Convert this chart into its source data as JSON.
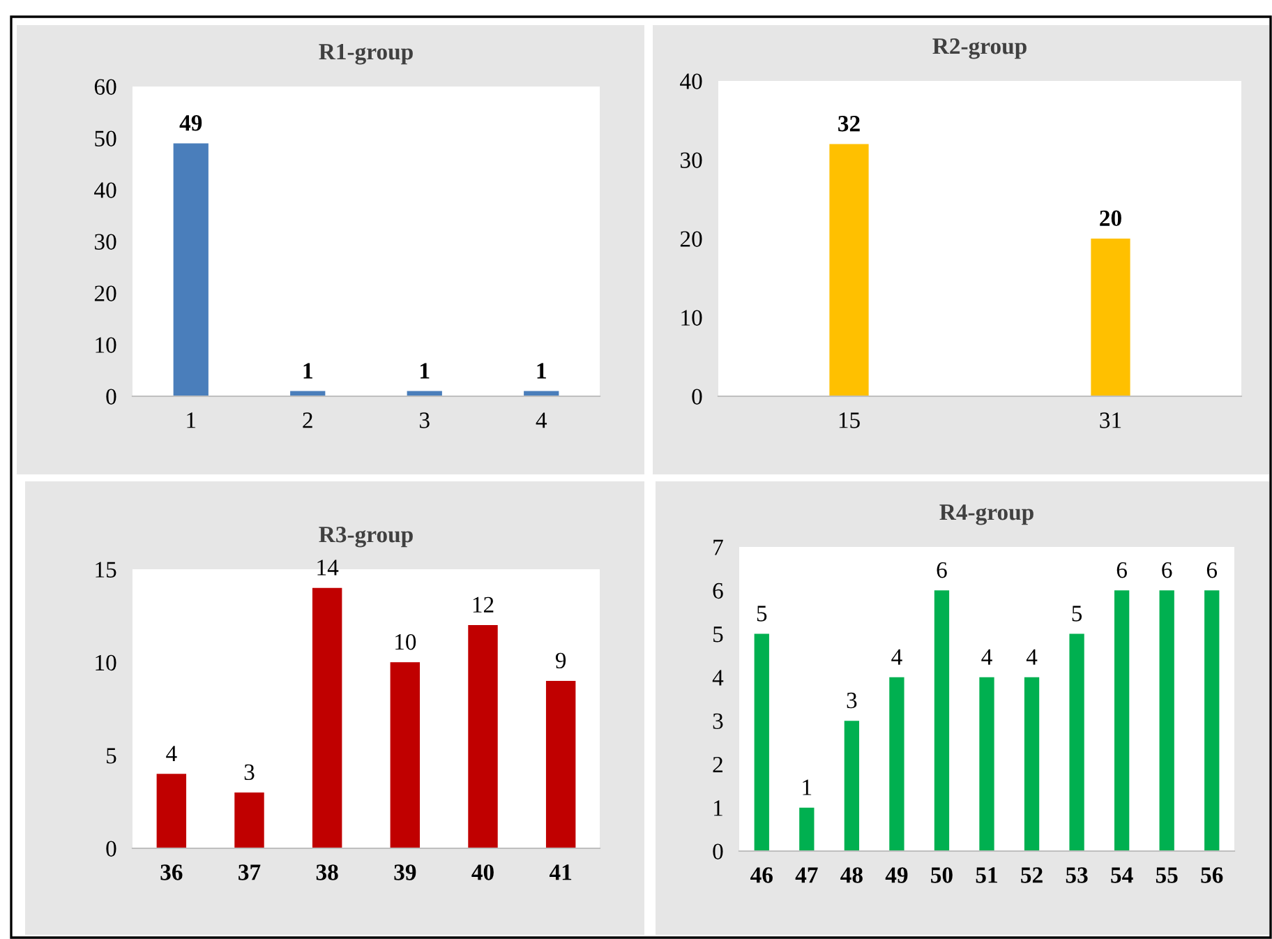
{
  "chart_data": [
    {
      "type": "bar",
      "title": "R1-group",
      "categories": [
        "1",
        "2",
        "3",
        "4"
      ],
      "values": [
        49,
        1,
        1,
        1
      ],
      "color": "#4a7ebb",
      "ylim": [
        0,
        60
      ],
      "yticks": [
        0,
        10,
        20,
        30,
        40,
        50,
        60
      ],
      "data_labels": true,
      "grid": false,
      "legend": false
    },
    {
      "type": "bar",
      "title": "R2-group",
      "categories": [
        "15",
        "31"
      ],
      "values": [
        32,
        20
      ],
      "color": "#ffc000",
      "ylim": [
        0,
        40
      ],
      "yticks": [
        0,
        10,
        20,
        30,
        40
      ],
      "data_labels": true,
      "grid": false,
      "legend": false
    },
    {
      "type": "bar",
      "title": "R3-group",
      "categories": [
        "36",
        "37",
        "38",
        "39",
        "40",
        "41"
      ],
      "values": [
        4,
        3,
        14,
        10,
        12,
        9
      ],
      "color": "#c00000",
      "ylim": [
        0,
        15
      ],
      "yticks": [
        0,
        5,
        10,
        15
      ],
      "data_labels": true,
      "grid": false,
      "legend": false
    },
    {
      "type": "bar",
      "title": "R4-group",
      "categories": [
        "46",
        "47",
        "48",
        "49",
        "50",
        "51",
        "52",
        "53",
        "54",
        "55",
        "56"
      ],
      "values": [
        5,
        1,
        3,
        4,
        6,
        4,
        4,
        5,
        6,
        6,
        6
      ],
      "color": "#00b050",
      "ylim": [
        0,
        7
      ],
      "yticks": [
        0,
        1,
        2,
        3,
        4,
        5,
        6,
        7
      ],
      "data_labels": true,
      "grid": false,
      "legend": false
    }
  ]
}
